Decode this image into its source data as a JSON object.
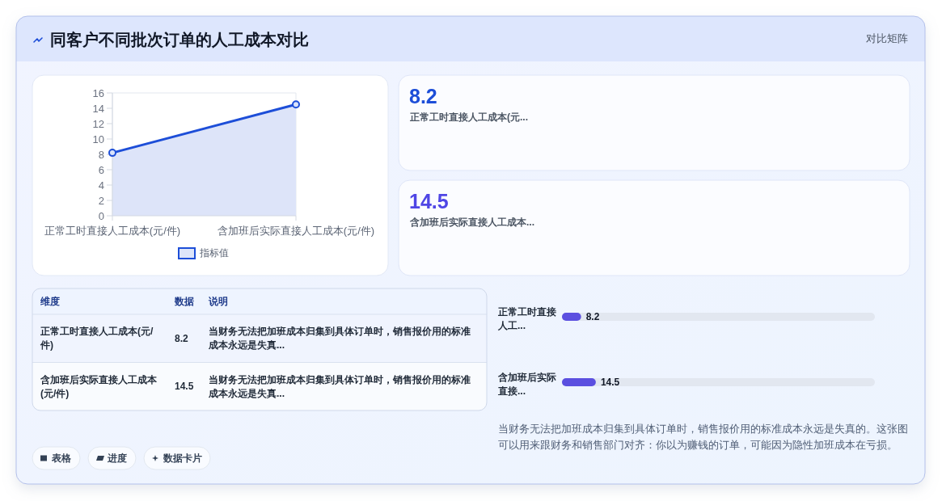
{
  "chart_data": [
    {
      "type": "area",
      "title": "同客户不同批次订单的人工成本对比",
      "annotations": [
        "对比矩阵"
      ],
      "categories": [
        "正常工时直接人工成本(元/件)",
        "含加班后实际直接人工成本(元/件)"
      ],
      "series": [
        {
          "name": "指标值",
          "color": "#1d4ed8",
          "values": [
            8.2,
            14.5
          ]
        }
      ],
      "ylim": [
        0,
        16
      ],
      "yticks": [
        0,
        2,
        4,
        6,
        8,
        10,
        12,
        14,
        16
      ],
      "grid": true,
      "legend": "bottom",
      "marker": "circle"
    },
    {
      "type": "other",
      "categories": [
        "正常工时直接人工成本(元...",
        "含加班后实际直接人工成本..."
      ],
      "values": [
        8.2,
        14.5
      ],
      "data_labels": true
    },
    {
      "type": "other",
      "categories": [
        "正常工时直接人工成本(元/件)",
        "含加班后实际直接人工成本(元/件)"
      ],
      "values": [
        8.2,
        14.5
      ],
      "data_labels": true,
      "annotations": [
        "维度",
        "数据",
        "说明",
        "当财务无法把加班成本归集到具体订单时，销售报价用的标准成本永远是失真...",
        "当财务无法把加班成本归集到具体订单时，销售报价用的标准成本永远是失真..."
      ]
    },
    {
      "type": "bar",
      "orientation": "horizontal",
      "categories": [
        "正常工时直接人工...",
        "含加班后实际直接..."
      ],
      "values": [
        8.2,
        14.5
      ],
      "data_labels": true,
      "color": "#5b4fe0",
      "xlim": [
        0,
        134
      ],
      "tick_labels": "y",
      "annotations": [
        "当财务无法把加班成本归集到具体订单时，销售报价用的标准成本永远是失真的。这张图可以用来跟财务和销售部门对齐：你以为赚钱的订单，可能因为隐性加班成本在亏损。"
      ]
    },
    {
      "type": "other",
      "annotations": [
        "表格",
        "进度",
        "数据卡片"
      ]
    }
  ]
}
